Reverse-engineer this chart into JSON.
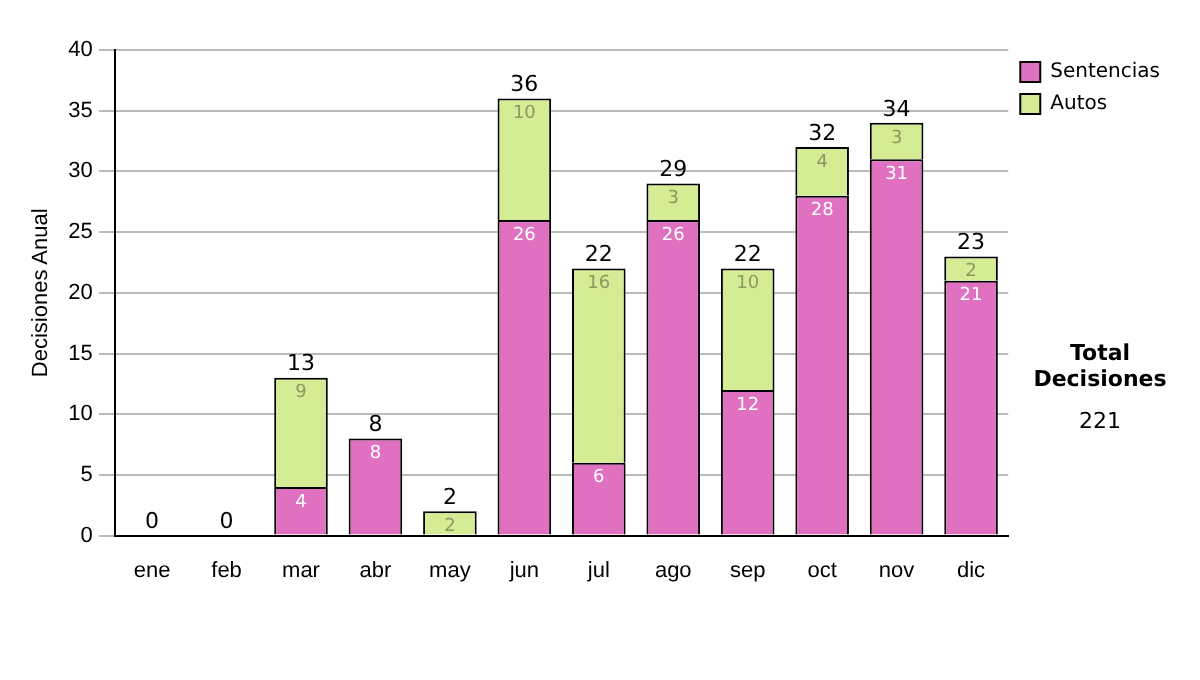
{
  "chart_data": {
    "type": "bar",
    "ylabel": "Decisiones Anual",
    "categories": [
      "ene",
      "feb",
      "mar",
      "abr",
      "may",
      "jun",
      "jul",
      "ago",
      "sep",
      "oct",
      "nov",
      "dic"
    ],
    "stacked": true,
    "ylim": [
      0,
      40
    ],
    "yticks": [
      0,
      5,
      10,
      15,
      20,
      25,
      30,
      35,
      40
    ],
    "grid": "y",
    "legend": "right",
    "series": [
      {
        "name": "Sentencias",
        "color": "#e070c0",
        "values": [
          0,
          0,
          4,
          8,
          0,
          26,
          6,
          26,
          12,
          28,
          31,
          21
        ],
        "value_labels": [
          null,
          null,
          "4",
          "8",
          null,
          "26",
          "6",
          "26",
          "12",
          "28",
          "31",
          "21"
        ]
      },
      {
        "name": "Autos",
        "color": "#d4ec94",
        "values": [
          0,
          0,
          9,
          0,
          2,
          10,
          16,
          3,
          10,
          4,
          3,
          2
        ],
        "value_labels": [
          null,
          null,
          "9",
          null,
          "2",
          "10",
          "16",
          "3",
          "10",
          "4",
          "3",
          "2"
        ]
      }
    ],
    "totals": [
      "0",
      "0",
      "13",
      "8",
      "2",
      "36",
      "22",
      "29",
      "22",
      "32",
      "34",
      "23"
    ],
    "annotations": [
      "Total Decisiones",
      "221"
    ]
  }
}
